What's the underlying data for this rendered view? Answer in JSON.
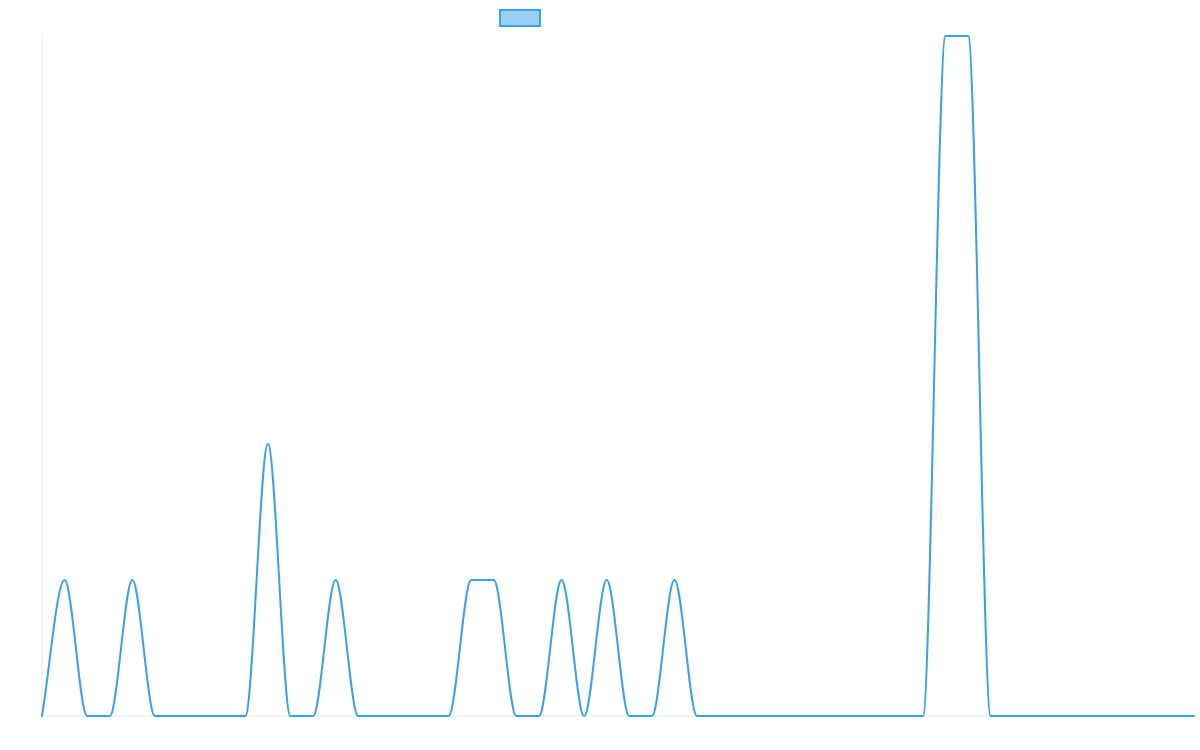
{
  "chart_data": {
    "type": "line",
    "title": "",
    "xlabel": "",
    "ylabel": "",
    "x": [
      0,
      1,
      2,
      3,
      4,
      5,
      6,
      7,
      8,
      9,
      10,
      11,
      12,
      13,
      14,
      15,
      16,
      17,
      18,
      19,
      20,
      21,
      22,
      23,
      24,
      25,
      26,
      27,
      28,
      29,
      30,
      31,
      32,
      33,
      34,
      35,
      36,
      37,
      38,
      39,
      40,
      41,
      42,
      43,
      44,
      45,
      46,
      47,
      48,
      49,
      50,
      51
    ],
    "ylim": [
      0,
      5
    ],
    "grid": false,
    "legend_position": "top-center",
    "series": [
      {
        "color": "#36a2eb",
        "fill_color": "#9ad0f5",
        "values": [
          0,
          1,
          0,
          0,
          1,
          0,
          0,
          0,
          0,
          0,
          2,
          0,
          0,
          1,
          0,
          0,
          0,
          0,
          0,
          1,
          1,
          0,
          0,
          1,
          0,
          1,
          0,
          0,
          1,
          0,
          0,
          0,
          0,
          0,
          0,
          0,
          0,
          0,
          0,
          0,
          5,
          5,
          0,
          0,
          0,
          0,
          0,
          0,
          0,
          0,
          0,
          0
        ]
      }
    ]
  }
}
